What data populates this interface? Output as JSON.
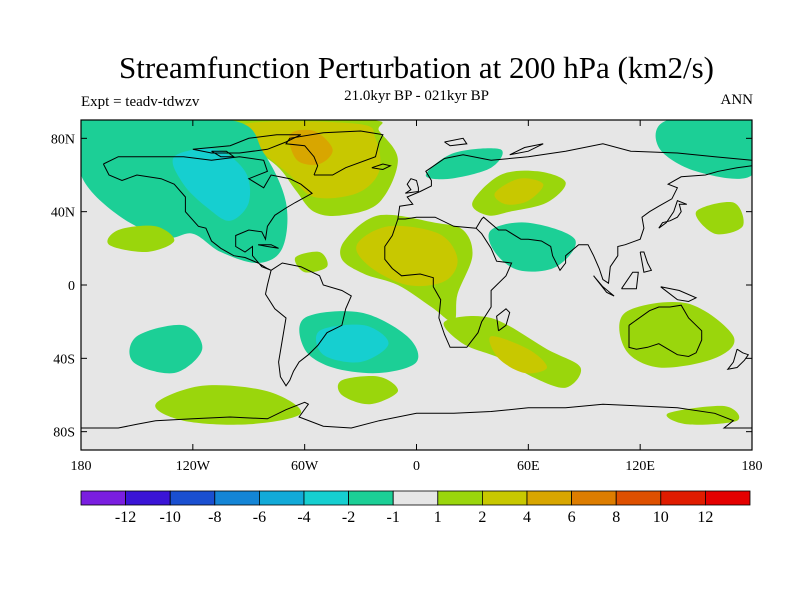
{
  "header": {
    "title": "Streamfunction Perturbation at 200 hPa (km2/s)",
    "subtitle": "21.0kyr BP - 021kyr BP",
    "expt_label": "Expt = teadv-tdwzv",
    "season": "ANN"
  },
  "chart_data": {
    "type": "heatmap",
    "projection": "cylindrical-equidistant",
    "xlim": [
      -180,
      180
    ],
    "ylim": [
      -90,
      90
    ],
    "x_ticks": [
      {
        "value": -180,
        "label": "180"
      },
      {
        "value": -120,
        "label": "120W"
      },
      {
        "value": -60,
        "label": "60W"
      },
      {
        "value": 0,
        "label": "0"
      },
      {
        "value": 60,
        "label": "60E"
      },
      {
        "value": 120,
        "label": "120E"
      },
      {
        "value": 180,
        "label": "180"
      }
    ],
    "y_ticks": [
      {
        "value": 80,
        "label": "80N"
      },
      {
        "value": 40,
        "label": "40N"
      },
      {
        "value": 0,
        "label": "0"
      },
      {
        "value": -40,
        "label": "40S"
      },
      {
        "value": -80,
        "label": "80S"
      }
    ],
    "colorbar": {
      "labels": [
        "-12",
        "-10",
        "-8",
        "-6",
        "-4",
        "-2",
        "-1",
        "1",
        "2",
        "4",
        "6",
        "8",
        "10",
        "12"
      ],
      "colors": [
        "#7a1ee0",
        "#3a14d6",
        "#1a4fd0",
        "#1485d6",
        "#12aad8",
        "#16cfd0",
        "#1ccf96",
        "#e6e6e6",
        "#9ad60c",
        "#c8c800",
        "#d8a600",
        "#dd7d00",
        "#de5000",
        "#e01c00",
        "#e40000"
      ]
    },
    "background_color": "#e6e6e6",
    "contour_regions": [
      {
        "level": "1",
        "color": "#9ad60c",
        "region": "North Atlantic / Greenland",
        "points": [
          [
            -100,
            90
          ],
          [
            -25,
            90
          ],
          [
            -20,
            84
          ],
          [
            -10,
            68
          ],
          [
            -20,
            45
          ],
          [
            -40,
            38
          ],
          [
            -55,
            40
          ],
          [
            -65,
            52
          ],
          [
            -75,
            65
          ],
          [
            -95,
            80
          ]
        ]
      },
      {
        "level": "2",
        "color": "#c8c800",
        "region": "North Atlantic / Greenland",
        "points": [
          [
            -92,
            88
          ],
          [
            -32,
            88
          ],
          [
            -22,
            80
          ],
          [
            -20,
            62
          ],
          [
            -32,
            50
          ],
          [
            -55,
            48
          ],
          [
            -68,
            60
          ],
          [
            -85,
            75
          ]
        ]
      },
      {
        "level": "4",
        "color": "#d8a600",
        "region": "Baffin Bay",
        "points": [
          [
            -68,
            82
          ],
          [
            -55,
            84
          ],
          [
            -45,
            74
          ],
          [
            -52,
            66
          ],
          [
            -64,
            68
          ]
        ]
      },
      {
        "level": "-1",
        "color": "#1ccf96",
        "region": "North Pacific / North America",
        "points": [
          [
            -180,
            90
          ],
          [
            -100,
            90
          ],
          [
            -82,
            72
          ],
          [
            -70,
            45
          ],
          [
            -72,
            20
          ],
          [
            -85,
            12
          ],
          [
            -105,
            18
          ],
          [
            -120,
            28
          ],
          [
            -135,
            26
          ],
          [
            -160,
            38
          ],
          [
            -180,
            60
          ]
        ]
      },
      {
        "level": "-2",
        "color": "#16cfd0",
        "region": "Western North America",
        "points": [
          [
            -130,
            70
          ],
          [
            -108,
            74
          ],
          [
            -92,
            62
          ],
          [
            -90,
            45
          ],
          [
            -100,
            35
          ],
          [
            -112,
            42
          ],
          [
            -125,
            55
          ]
        ]
      },
      {
        "level": "1",
        "color": "#9ad60c",
        "region": "North Pacific",
        "points": [
          [
            -160,
            30
          ],
          [
            -140,
            32
          ],
          [
            -130,
            24
          ],
          [
            -145,
            18
          ],
          [
            -165,
            22
          ]
        ]
      },
      {
        "level": "1",
        "color": "#9ad60c",
        "region": "Tropical Atlantic / Africa",
        "points": [
          [
            -38,
            25
          ],
          [
            -20,
            38
          ],
          [
            10,
            34
          ],
          [
            25,
            30
          ],
          [
            30,
            16
          ],
          [
            22,
            -5
          ],
          [
            20,
            -20
          ],
          [
            8,
            -12
          ],
          [
            -10,
            0
          ],
          [
            -28,
            6
          ],
          [
            -40,
            14
          ]
        ]
      },
      {
        "level": "2",
        "color": "#c8c800",
        "region": "Tropical Atlantic / Africa",
        "points": [
          [
            -32,
            22
          ],
          [
            -15,
            32
          ],
          [
            12,
            28
          ],
          [
            22,
            14
          ],
          [
            15,
            2
          ],
          [
            -5,
            0
          ],
          [
            -25,
            10
          ]
        ]
      },
      {
        "level": "1",
        "color": "#9ad60c",
        "region": "Eastern Europe / Arabia",
        "points": [
          [
            30,
            45
          ],
          [
            45,
            60
          ],
          [
            65,
            62
          ],
          [
            80,
            56
          ],
          [
            70,
            45
          ],
          [
            50,
            40
          ],
          [
            38,
            38
          ]
        ]
      },
      {
        "level": "2",
        "color": "#c8c800",
        "region": "Arabia",
        "points": [
          [
            42,
            50
          ],
          [
            55,
            58
          ],
          [
            68,
            55
          ],
          [
            60,
            46
          ],
          [
            48,
            44
          ]
        ]
      },
      {
        "level": "-1",
        "color": "#1ccf96",
        "region": "Arctic Europe",
        "points": [
          [
            5,
            60
          ],
          [
            20,
            72
          ],
          [
            45,
            74
          ],
          [
            40,
            64
          ],
          [
            18,
            58
          ]
        ]
      },
      {
        "level": "-1",
        "color": "#1ccf96",
        "region": "India",
        "points": [
          [
            40,
            30
          ],
          [
            60,
            34
          ],
          [
            85,
            25
          ],
          [
            75,
            10
          ],
          [
            55,
            8
          ],
          [
            42,
            18
          ]
        ]
      },
      {
        "level": "1",
        "color": "#9ad60c",
        "region": "Southwest Indian Ocean",
        "points": [
          [
            15,
            -20
          ],
          [
            40,
            -18
          ],
          [
            70,
            -35
          ],
          [
            88,
            -45
          ],
          [
            80,
            -56
          ],
          [
            62,
            -50
          ],
          [
            45,
            -40
          ],
          [
            25,
            -32
          ]
        ]
      },
      {
        "level": "2",
        "color": "#c8c800",
        "region": "Southwest Indian Ocean",
        "points": [
          [
            40,
            -28
          ],
          [
            60,
            -35
          ],
          [
            70,
            -45
          ],
          [
            58,
            -48
          ],
          [
            44,
            -40
          ]
        ]
      },
      {
        "level": "-1",
        "color": "#1ccf96",
        "region": "Southwest Atlantic",
        "points": [
          [
            -60,
            -18
          ],
          [
            -30,
            -15
          ],
          [
            -5,
            -28
          ],
          [
            0,
            -42
          ],
          [
            -20,
            -48
          ],
          [
            -45,
            -45
          ],
          [
            -60,
            -35
          ]
        ]
      },
      {
        "level": "-2",
        "color": "#16cfd0",
        "region": "Southwest Atlantic",
        "points": [
          [
            -52,
            -25
          ],
          [
            -28,
            -22
          ],
          [
            -15,
            -32
          ],
          [
            -30,
            -42
          ],
          [
            -50,
            -38
          ]
        ]
      },
      {
        "level": "-1",
        "color": "#1ccf96",
        "region": "South Pacific",
        "points": [
          [
            -150,
            -28
          ],
          [
            -125,
            -22
          ],
          [
            -115,
            -35
          ],
          [
            -130,
            -48
          ],
          [
            -152,
            -42
          ]
        ]
      },
      {
        "level": "1",
        "color": "#9ad60c",
        "region": "Southern Ocean",
        "points": [
          [
            -140,
            -65
          ],
          [
            -115,
            -55
          ],
          [
            -80,
            -58
          ],
          [
            -62,
            -70
          ],
          [
            -90,
            -76
          ],
          [
            -125,
            -74
          ]
        ]
      },
      {
        "level": "1",
        "color": "#9ad60c",
        "region": "South Atlantic",
        "points": [
          [
            -40,
            -52
          ],
          [
            -20,
            -50
          ],
          [
            -10,
            -58
          ],
          [
            -25,
            -65
          ],
          [
            -40,
            -60
          ]
        ]
      },
      {
        "level": "1",
        "color": "#9ad60c",
        "region": "Australia",
        "points": [
          [
            112,
            -15
          ],
          [
            145,
            -10
          ],
          [
            170,
            -28
          ],
          [
            160,
            -40
          ],
          [
            130,
            -45
          ],
          [
            112,
            -35
          ]
        ]
      },
      {
        "level": "-1",
        "color": "#1ccf96",
        "region": "North Pacific East Asia",
        "points": [
          [
            135,
            90
          ],
          [
            180,
            90
          ],
          [
            180,
            60
          ],
          [
            150,
            62
          ],
          [
            130,
            75
          ]
        ]
      },
      {
        "level": "1",
        "color": "#9ad60c",
        "region": "Northwest Pacific",
        "points": [
          [
            150,
            40
          ],
          [
            170,
            45
          ],
          [
            175,
            32
          ],
          [
            160,
            28
          ]
        ]
      },
      {
        "level": "1",
        "color": "#9ad60c",
        "region": "Antarctic margin",
        "points": [
          [
            135,
            -70
          ],
          [
            165,
            -66
          ],
          [
            172,
            -74
          ],
          [
            145,
            -76
          ]
        ]
      },
      {
        "level": "1",
        "color": "#9ad60c",
        "region": "Western Atlantic",
        "points": [
          [
            -65,
            15
          ],
          [
            -52,
            18
          ],
          [
            -48,
            10
          ],
          [
            -60,
            7
          ]
        ]
      }
    ]
  }
}
